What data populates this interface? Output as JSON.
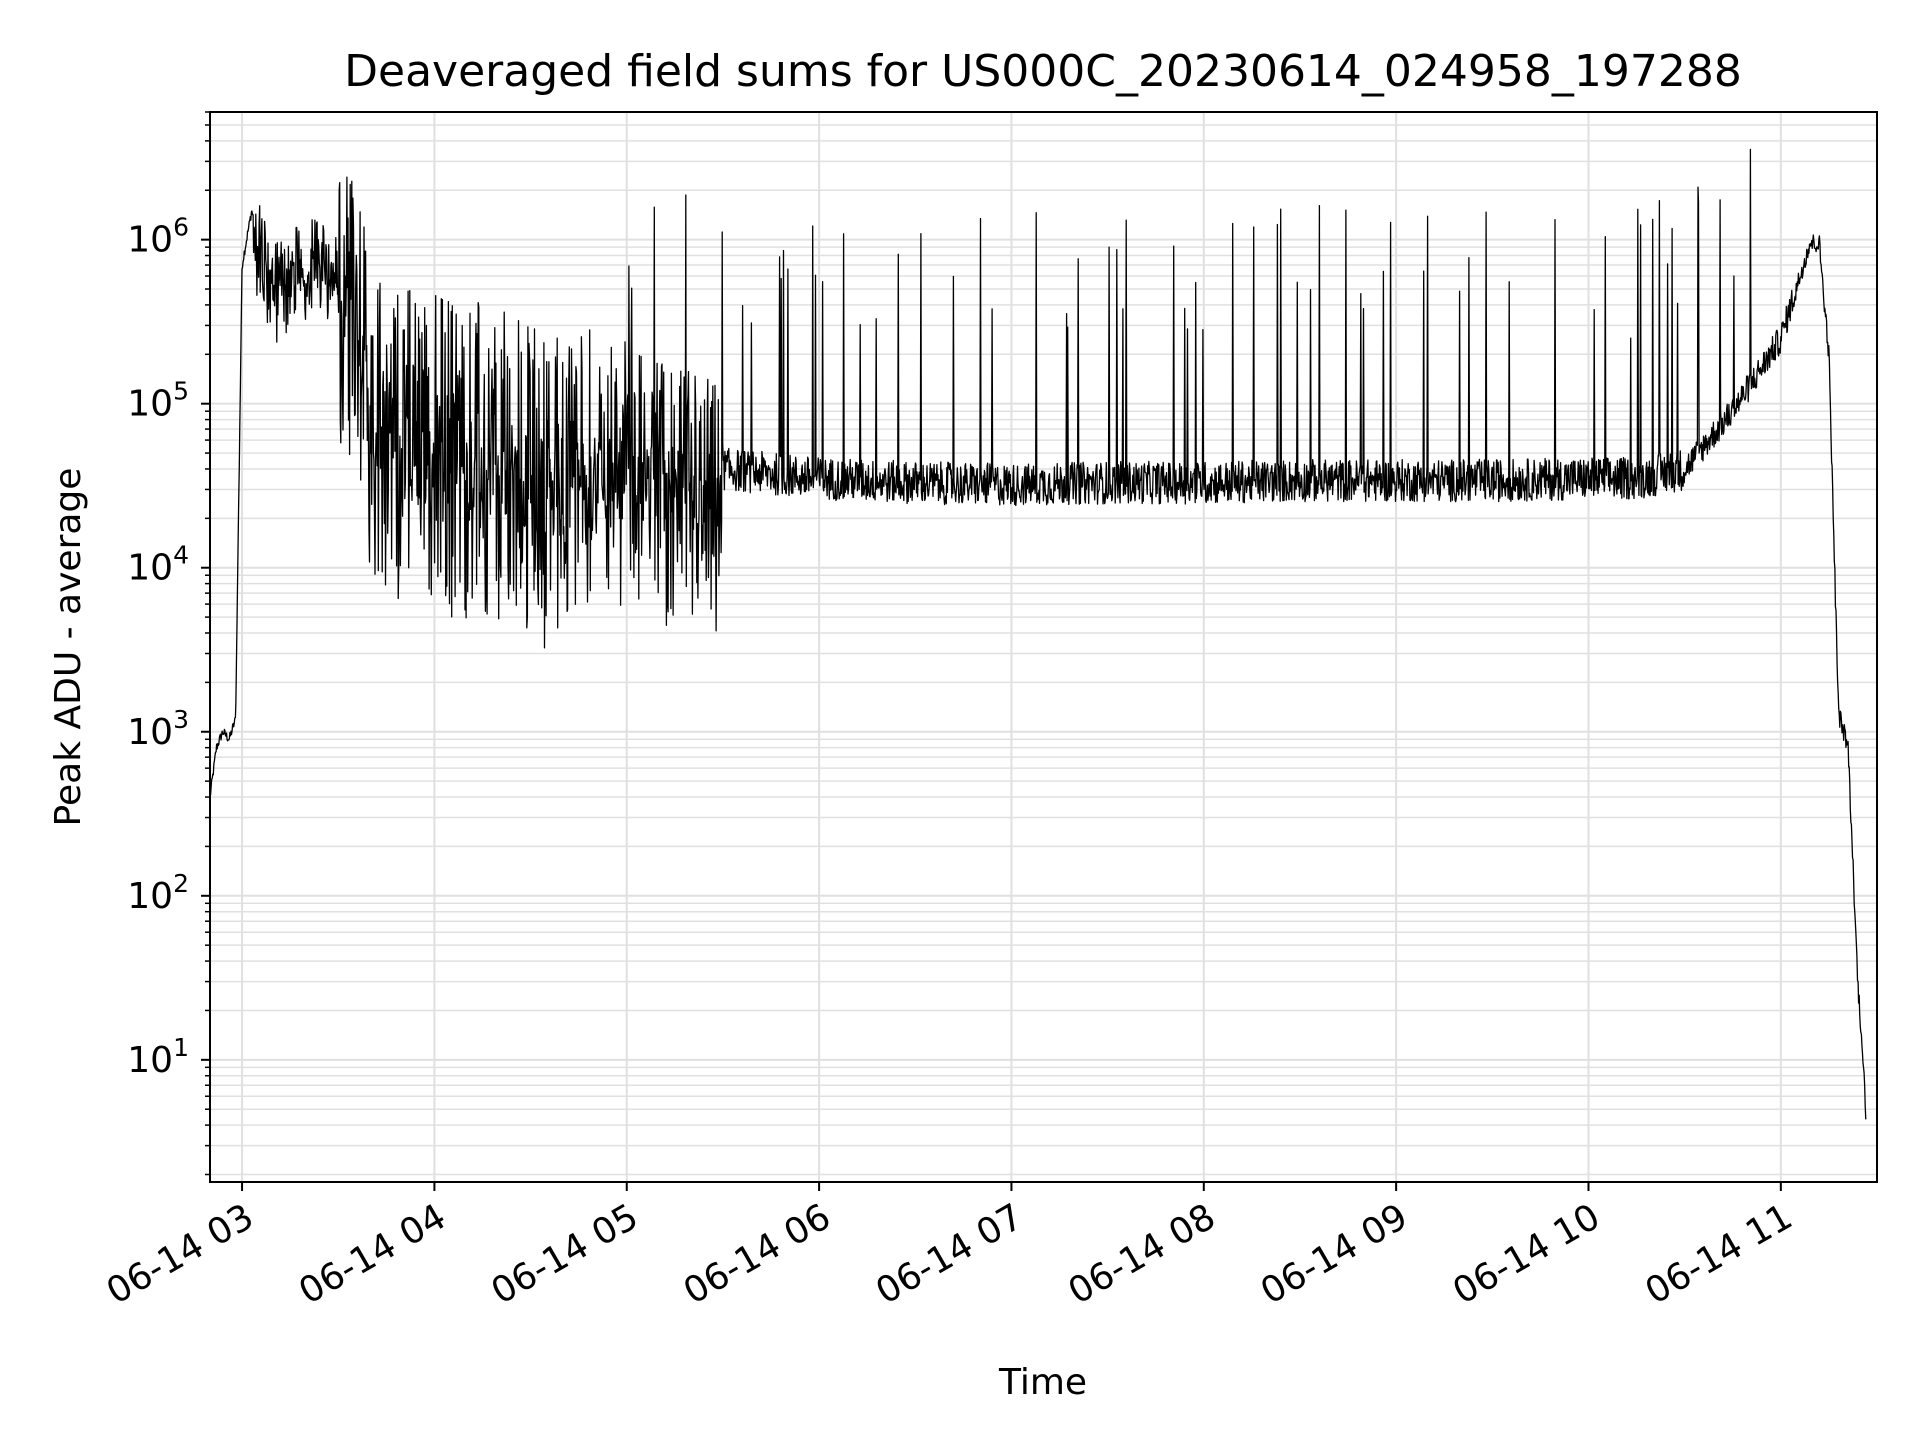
{
  "chart_data": {
    "type": "line",
    "title": "Deaveraged field sums for US000C_20230614_024958_197288",
    "xlabel": "Time",
    "ylabel": "Peak ADU - average",
    "x_ticks": [
      "06-14 03",
      "06-14 04",
      "06-14 05",
      "06-14 06",
      "06-14 07",
      "06-14 08",
      "06-14 09",
      "06-14 10",
      "06-14 11"
    ],
    "y_ticks": [
      {
        "base": "10",
        "exp": "1"
      },
      {
        "base": "10",
        "exp": "2"
      },
      {
        "base": "10",
        "exp": "3"
      },
      {
        "base": "10",
        "exp": "4"
      },
      {
        "base": "10",
        "exp": "5"
      },
      {
        "base": "10",
        "exp": "6"
      }
    ],
    "x_range": [
      "06-14 02:50",
      "06-14 11:30"
    ],
    "y_scale": "log",
    "ylim": [
      1.8,
      6000000
    ],
    "grid": true,
    "line_color": "#000000",
    "grid_color": "#e0e0e0",
    "series": [
      {
        "x": [
          "06-14 02:50",
          "06-14 02:52",
          "06-14 02:54",
          "06-14 02:56",
          "06-14 02:58",
          "06-14 03:00",
          "06-14 03:03",
          "06-14 03:06",
          "06-14 03:10",
          "06-14 03:15",
          "06-14 03:20",
          "06-14 03:25",
          "06-14 03:30",
          "06-14 03:35",
          "06-14 03:40",
          "06-14 03:45",
          "06-14 03:50",
          "06-14 04:00",
          "06-14 04:15",
          "06-14 04:30",
          "06-14 04:45",
          "06-14 05:00",
          "06-14 05:15",
          "06-14 05:30",
          "06-14 06:00",
          "06-14 06:30",
          "06-14 07:00",
          "06-14 07:30",
          "06-14 08:00",
          "06-14 08:30",
          "06-14 09:00",
          "06-14 09:30",
          "06-14 10:00",
          "06-14 10:15",
          "06-14 10:30",
          "06-14 10:45",
          "06-14 11:00",
          "06-14 11:06",
          "06-14 11:09",
          "06-14 11:12",
          "06-14 11:15",
          "06-14 11:18",
          "06-14 11:21",
          "06-14 11:24",
          "06-14 11:26",
          "06-14 11:27"
        ],
        "y": [
          400,
          800,
          1000,
          900,
          1200,
          700000,
          1500000,
          900000,
          600000,
          700000,
          800000,
          1000000,
          700000,
          500000,
          200000,
          150000,
          120000,
          110000,
          90000,
          70000,
          60000,
          70000,
          50000,
          40000,
          35000,
          33000,
          32000,
          33000,
          33000,
          34000,
          34000,
          34000,
          35000,
          35000,
          40000,
          90000,
          250000,
          600000,
          950000,
          950000,
          200000,
          1300,
          800,
          30,
          8,
          2.5
        ]
      }
    ]
  }
}
